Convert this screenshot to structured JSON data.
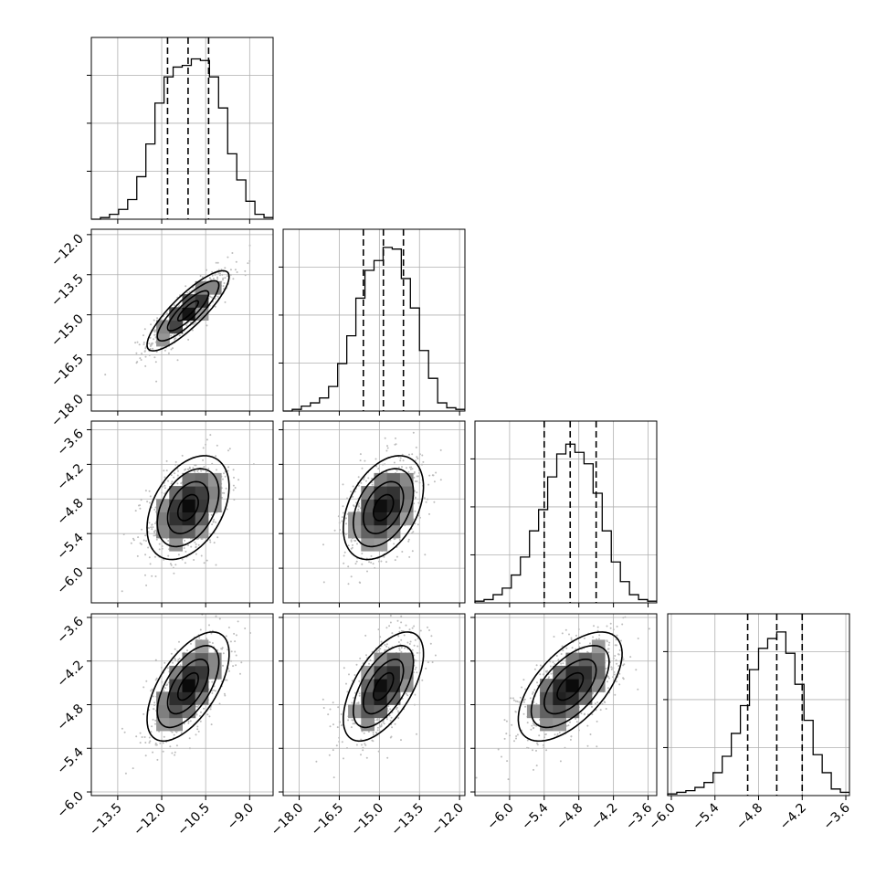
{
  "chart_data": {
    "type": "corner",
    "parameters": [
      {
        "range": [
          -14.4,
          -8.2
        ],
        "ticks": [
          -13.5,
          -12.0,
          -10.5,
          -9.0
        ],
        "tick_labels": [
          "−13.5",
          "−12.0",
          "−10.5",
          "−9.0"
        ],
        "median": -11.1,
        "q16": -11.8,
        "q84": -10.4
      },
      {
        "range": [
          -18.6,
          -11.8
        ],
        "ticks": [
          -18.0,
          -16.5,
          -15.0,
          -13.5,
          -12.0
        ],
        "tick_labels": [
          "−18.0",
          "−16.5",
          "−15.0",
          "−13.5",
          "−12.0"
        ],
        "median": -14.85,
        "q16": -15.6,
        "q84": -14.1
      },
      {
        "range": [
          -6.6,
          -3.45
        ],
        "ticks": [
          -6.0,
          -5.4,
          -4.8,
          -4.2,
          -3.6
        ],
        "tick_labels": [
          "−6.0",
          "−5.4",
          "−4.8",
          "−4.2",
          "−3.6"
        ],
        "median": -4.95,
        "q16": -5.4,
        "q84": -4.5
      },
      {
        "range": [
          -6.05,
          -3.55
        ],
        "ticks": [
          -6.0,
          -5.4,
          -4.8,
          -4.2,
          -3.6
        ],
        "tick_labels": [
          "−6.0",
          "−5.4",
          "−4.8",
          "−4.2",
          "−3.6"
        ],
        "median": -4.55,
        "q16": -4.95,
        "q84": -4.2
      }
    ],
    "histograms": [
      [
        0,
        0.01,
        0.03,
        0.06,
        0.12,
        0.26,
        0.46,
        0.71,
        0.87,
        0.93,
        0.94,
        0.98,
        0.97,
        0.87,
        0.68,
        0.4,
        0.24,
        0.11,
        0.03,
        0.01
      ],
      [
        0,
        0.01,
        0.03,
        0.05,
        0.08,
        0.15,
        0.29,
        0.46,
        0.69,
        0.86,
        0.92,
        1.0,
        0.99,
        0.81,
        0.63,
        0.37,
        0.2,
        0.05,
        0.02,
        0.01
      ],
      [
        0.01,
        0.02,
        0.05,
        0.09,
        0.17,
        0.28,
        0.44,
        0.57,
        0.77,
        0.91,
        0.97,
        0.92,
        0.85,
        0.67,
        0.44,
        0.25,
        0.13,
        0.05,
        0.02,
        0.01
      ],
      [
        0.01,
        0.02,
        0.03,
        0.05,
        0.08,
        0.14,
        0.24,
        0.38,
        0.55,
        0.77,
        0.9,
        0.96,
        1.0,
        0.87,
        0.68,
        0.46,
        0.25,
        0.14,
        0.04,
        0.02
      ]
    ],
    "correlations": [
      [
        0,
        0.85,
        0.4,
        0.6
      ],
      [
        0.85,
        0,
        0.4,
        0.6
      ],
      [
        0.4,
        0.4,
        0,
        0.6
      ],
      [
        0.6,
        0.6,
        0.6,
        0
      ]
    ],
    "contour_levels": [
      "0.5 sigma",
      "1 sigma",
      "1.5 sigma",
      "2 sigma"
    ],
    "grid": true,
    "xlabel": "",
    "ylabel": ""
  }
}
